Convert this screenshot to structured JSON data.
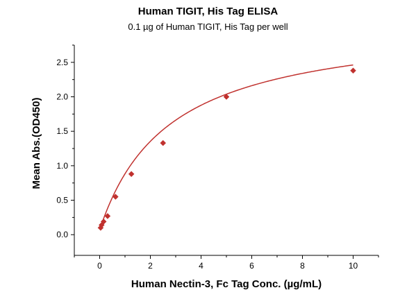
{
  "chart_data": {
    "type": "scatter",
    "title": "Human TIGIT, His Tag ELISA",
    "subtitle": "0.1 µg of Human TIGIT, His Tag per well",
    "xlabel": "Human Nectin-3, Fc Tag Conc. (µg/mL)",
    "ylabel": "Mean Abs.(OD450)",
    "xlim": [
      -1,
      11
    ],
    "ylim": [
      -0.3,
      2.75
    ],
    "x_ticks": [
      0,
      2,
      4,
      6,
      8,
      10
    ],
    "x_tick_labels": [
      "0",
      "2",
      "4",
      "6",
      "8",
      "10"
    ],
    "y_ticks": [
      0.0,
      0.5,
      1.0,
      1.5,
      2.0,
      2.5
    ],
    "y_tick_labels": [
      "0.0",
      "0.5",
      "1.0",
      "1.5",
      "2.0",
      "2.5"
    ],
    "grid": false,
    "color": "#c0312e",
    "series": [
      {
        "marker": "diamond",
        "fit": "hyperbolic",
        "x": [
          0.039,
          0.078,
          0.156,
          0.3125,
          0.625,
          1.25,
          2.5,
          5,
          10
        ],
        "y": [
          0.1,
          0.14,
          0.19,
          0.27,
          0.55,
          0.88,
          1.33,
          2.0,
          2.38
        ]
      }
    ]
  }
}
